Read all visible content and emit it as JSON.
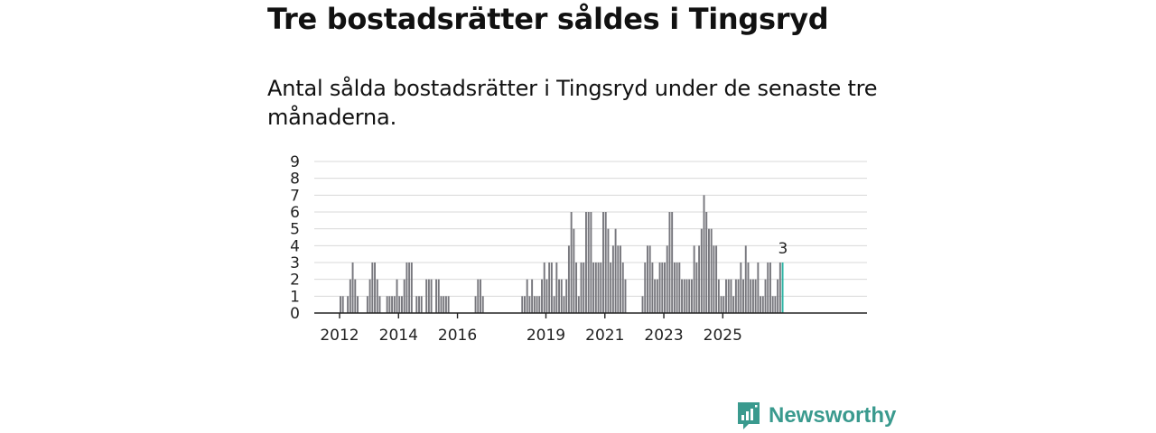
{
  "header": {
    "title": "Tre bostadsrätter såldes i Tingsryd",
    "subtitle": "Antal sålda bostadsrätter i Tingsryd under de senaste tre månaderna."
  },
  "brand": {
    "name": "Newsworthy",
    "icon": "newsworthy-logo-icon",
    "color": "#3a9a8e"
  },
  "chart_data": {
    "type": "bar",
    "title": "",
    "xlabel": "",
    "ylabel": "",
    "ylim": [
      0,
      9
    ],
    "yticks": [
      0,
      1,
      2,
      3,
      4,
      5,
      6,
      7,
      8,
      9
    ],
    "xtick_labels": [
      "2012",
      "2014",
      "2016",
      "2019",
      "2021",
      "2023",
      "2025"
    ],
    "start": "2011-01",
    "values": [
      0,
      0,
      0,
      0,
      0,
      0,
      0,
      0,
      0,
      0,
      0,
      0,
      1,
      1,
      0,
      1,
      2,
      3,
      2,
      1,
      0,
      0,
      0,
      1,
      2,
      3,
      3,
      2,
      1,
      0,
      0,
      1,
      1,
      1,
      1,
      2,
      1,
      1,
      2,
      3,
      3,
      3,
      0,
      1,
      1,
      1,
      0,
      2,
      2,
      2,
      0,
      2,
      2,
      1,
      1,
      1,
      1,
      0,
      0,
      0,
      0,
      0,
      0,
      0,
      0,
      0,
      0,
      1,
      2,
      2,
      1,
      0,
      0,
      0,
      0,
      0,
      0,
      0,
      0,
      0,
      0,
      0,
      0,
      0,
      0,
      0,
      1,
      1,
      2,
      1,
      2,
      1,
      1,
      1,
      2,
      3,
      2,
      3,
      3,
      1,
      3,
      2,
      2,
      1,
      2,
      4,
      6,
      5,
      3,
      1,
      3,
      3,
      6,
      6,
      6,
      3,
      3,
      3,
      3,
      6,
      6,
      5,
      3,
      4,
      5,
      4,
      4,
      3,
      2,
      0,
      0,
      0,
      0,
      0,
      0,
      1,
      3,
      4,
      4,
      3,
      2,
      2,
      3,
      3,
      3,
      4,
      6,
      6,
      3,
      3,
      3,
      2,
      2,
      2,
      2,
      2,
      4,
      3,
      4,
      5,
      7,
      6,
      5,
      5,
      4,
      4,
      2,
      1,
      1,
      2,
      2,
      2,
      1,
      2,
      2,
      3,
      2,
      4,
      3,
      2,
      2,
      2,
      3,
      1,
      1,
      2,
      3,
      3,
      1,
      1,
      2,
      3,
      3
    ],
    "highlight_last": true,
    "last_label": "3",
    "colors": {
      "bar": "#77777d",
      "highlight": "#2bb3a3",
      "grid": "#d8d8d8",
      "axis": "#222222"
    }
  }
}
